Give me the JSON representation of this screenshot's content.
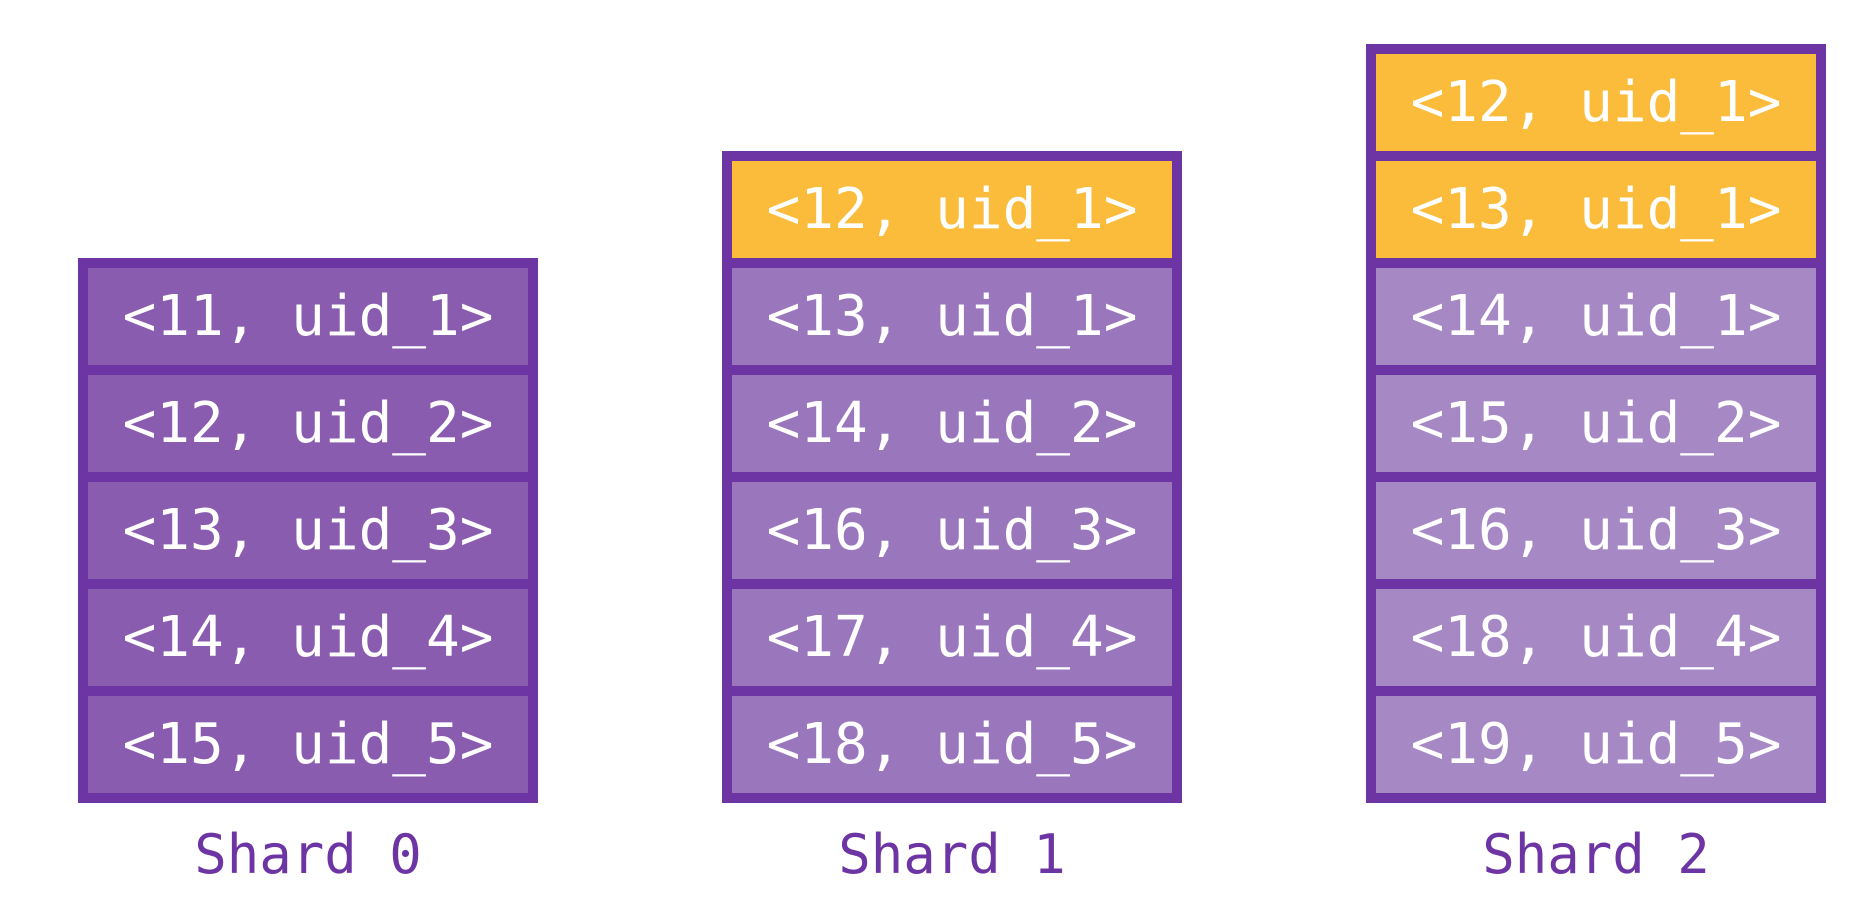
{
  "colors": {
    "frame": "#6d35a3",
    "label": "#6d35a3",
    "highlight": "#fbbc3c",
    "text": "#ffffff"
  },
  "shards": [
    {
      "label": "Shard 0",
      "cell_color": "#8a5cb0",
      "entries": [
        {
          "text": "<11, uid_1>",
          "highlighted": false
        },
        {
          "text": "<12, uid_2>",
          "highlighted": false
        },
        {
          "text": "<13, uid_3>",
          "highlighted": false
        },
        {
          "text": "<14, uid_4>",
          "highlighted": false
        },
        {
          "text": "<15, uid_5>",
          "highlighted": false
        }
      ]
    },
    {
      "label": "Shard 1",
      "cell_color": "#9a77bd",
      "entries": [
        {
          "text": "<12, uid_1>",
          "highlighted": true
        },
        {
          "text": "<13, uid_1>",
          "highlighted": false
        },
        {
          "text": "<14, uid_2>",
          "highlighted": false
        },
        {
          "text": "<16, uid_3>",
          "highlighted": false
        },
        {
          "text": "<17, uid_4>",
          "highlighted": false
        },
        {
          "text": "<18, uid_5>",
          "highlighted": false
        }
      ]
    },
    {
      "label": "Shard 2",
      "cell_color": "#a688c5",
      "entries": [
        {
          "text": "<12, uid_1>",
          "highlighted": true
        },
        {
          "text": "<13, uid_1>",
          "highlighted": true
        },
        {
          "text": "<14, uid_1>",
          "highlighted": false
        },
        {
          "text": "<15, uid_2>",
          "highlighted": false
        },
        {
          "text": "<16, uid_3>",
          "highlighted": false
        },
        {
          "text": "<18, uid_4>",
          "highlighted": false
        },
        {
          "text": "<19, uid_5>",
          "highlighted": false
        }
      ]
    }
  ]
}
